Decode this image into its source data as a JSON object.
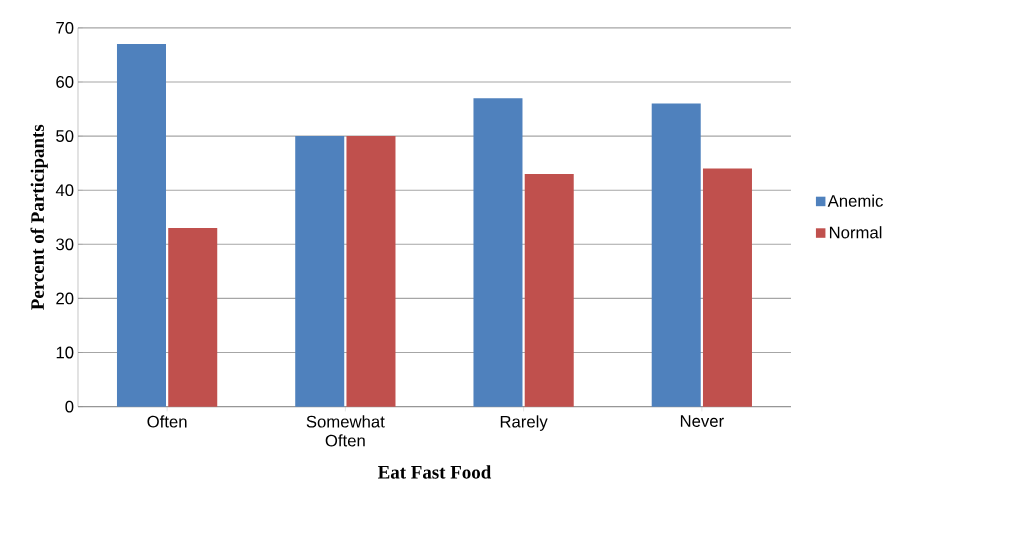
{
  "chart_data": {
    "type": "bar",
    "xlabel": "Eat Fast Food",
    "ylabel": "Percent of Participants",
    "categories": [
      "Often",
      "Somewhat Often",
      "Rarely",
      "Never"
    ],
    "series": [
      {
        "name": "Anemic",
        "color": "#4f81bd",
        "values": [
          67,
          50,
          57,
          56
        ]
      },
      {
        "name": "Normal",
        "color": "#c0504d",
        "values": [
          33,
          50,
          43,
          44
        ]
      }
    ],
    "ylim": [
      0,
      70
    ],
    "yticks": [
      0,
      10,
      20,
      30,
      40,
      50,
      60,
      70
    ],
    "grid": "y",
    "legend": "right"
  }
}
